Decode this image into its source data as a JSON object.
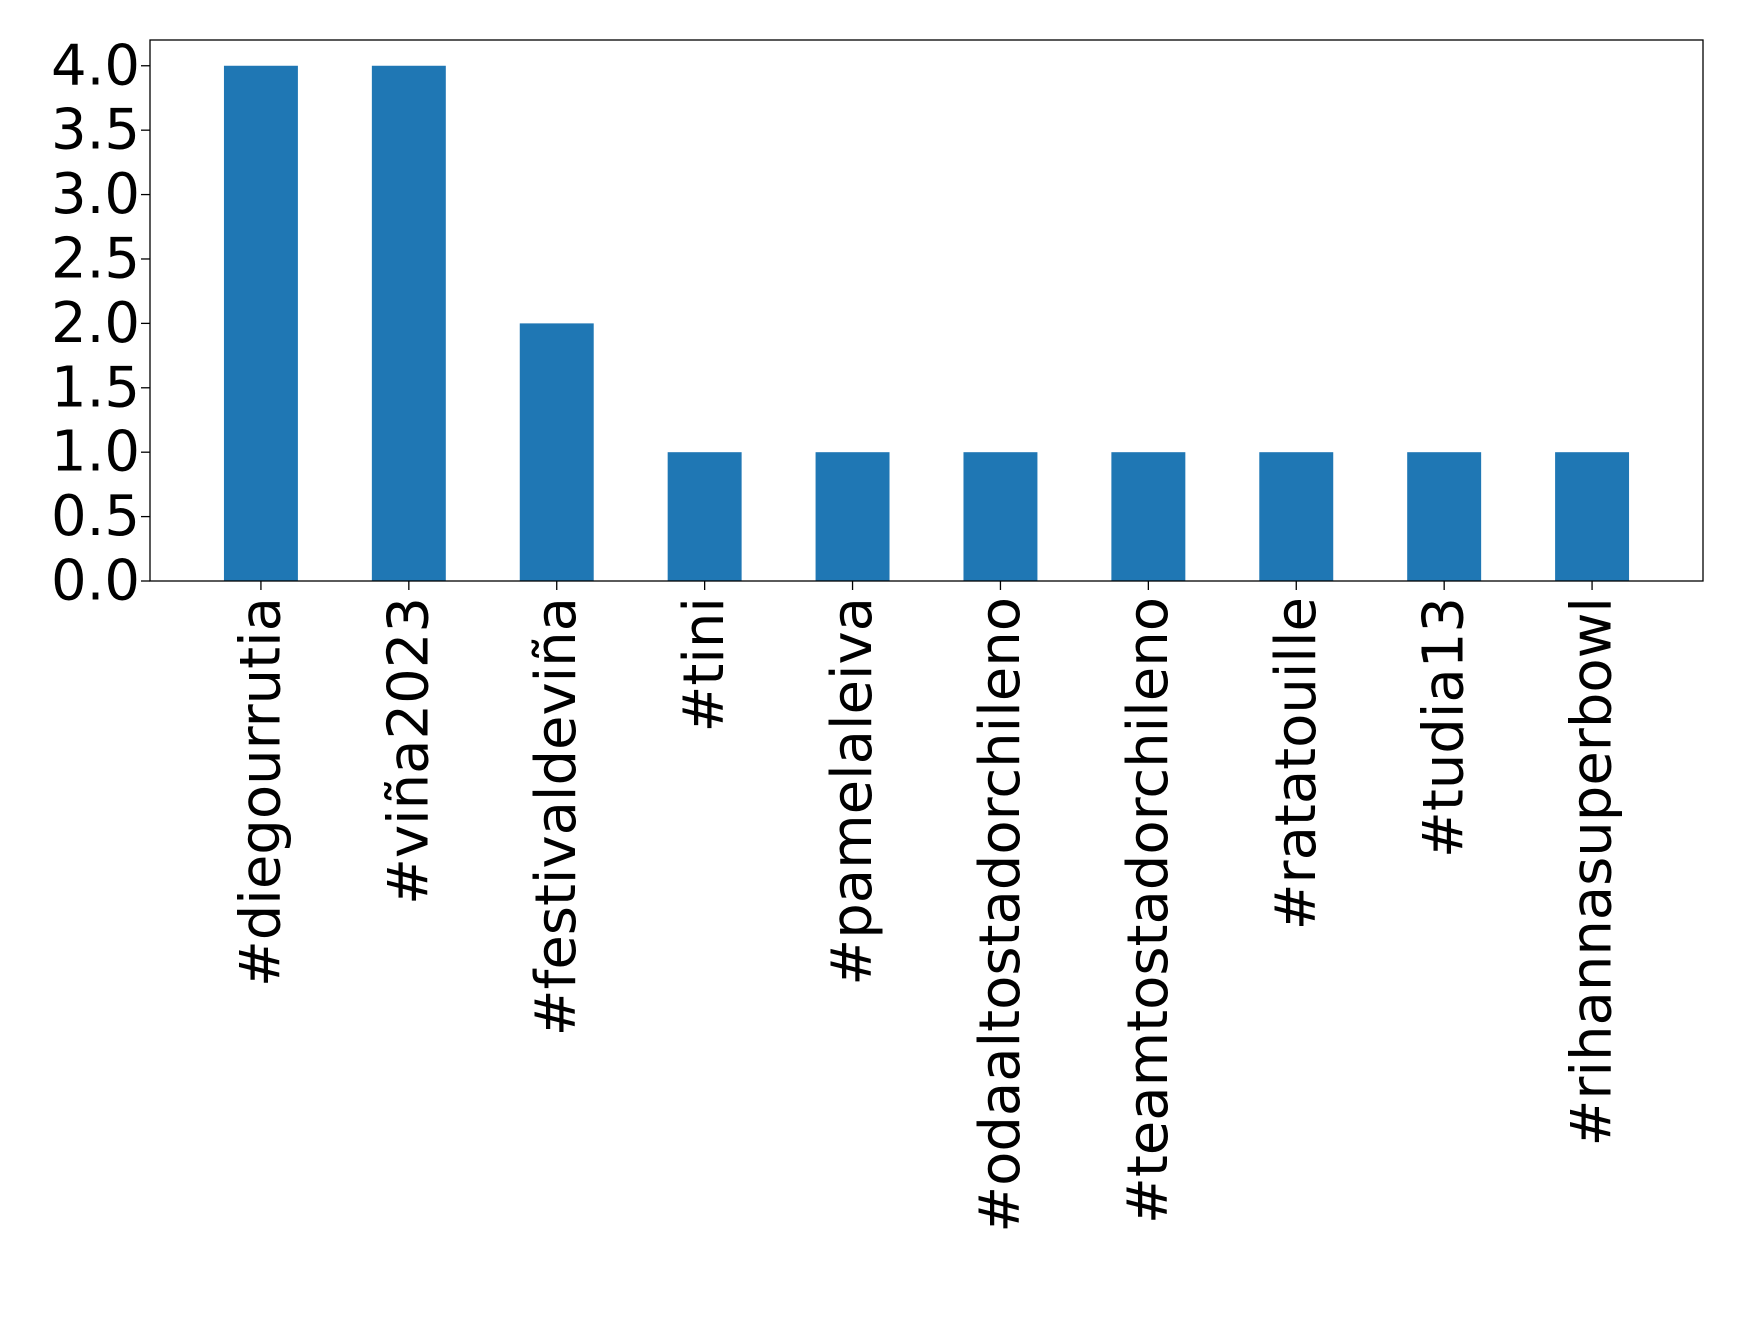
{
  "chart_data": {
    "type": "bar",
    "title": "",
    "xlabel": "",
    "ylabel": "",
    "categories": [
      "#diegourrutia",
      "#viña2023",
      "#festivaldeviña",
      "#tini",
      "#pamelaleiva",
      "#odaaltostadorchileno",
      "#teamtostadorchileno",
      "#ratatouille",
      "#tudia13",
      "#rihannasuperbowl"
    ],
    "values": [
      4,
      4,
      2,
      1,
      1,
      1,
      1,
      1,
      1,
      1
    ],
    "ylim": [
      0,
      4.2
    ],
    "yticks": [
      "0.0",
      "0.5",
      "1.0",
      "1.5",
      "2.0",
      "2.5",
      "3.0",
      "3.5",
      "4.0"
    ],
    "bar_color": "#1f77b4",
    "grid": false,
    "legend": "none"
  }
}
